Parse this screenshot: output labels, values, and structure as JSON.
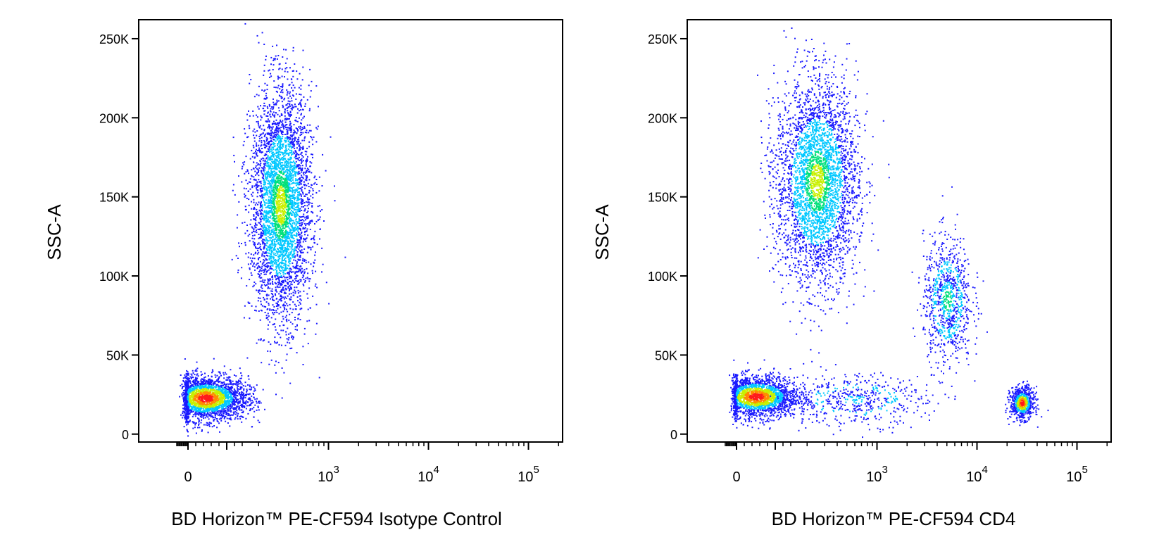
{
  "chart_data": [
    {
      "type": "scatter",
      "subtype": "flow-cytometry-density-dot-plot",
      "xlabel": "BD Horizon™ PE-CF594 Isotype Control",
      "ylabel": "SSC-A",
      "x_scale": "biexponential",
      "y_scale": "linear",
      "x_ticks": [
        {
          "value": 0,
          "base": "0",
          "exp": ""
        },
        {
          "value": 1000,
          "base": "10",
          "exp": "3"
        },
        {
          "value": 10000,
          "base": "10",
          "exp": "4"
        },
        {
          "value": 100000,
          "base": "10",
          "exp": "5"
        }
      ],
      "y_ticks": [
        {
          "value": 0,
          "label": "0"
        },
        {
          "value": 50000,
          "label": "50K"
        },
        {
          "value": 100000,
          "label": "100K"
        },
        {
          "value": 150000,
          "label": "150K"
        },
        {
          "value": 200000,
          "label": "200K"
        },
        {
          "value": 250000,
          "label": "250K"
        }
      ],
      "ylim": [
        -5000,
        262000
      ],
      "density_colors": [
        "#1a1aff",
        "#00c8ff",
        "#00e07a",
        "#c8f000",
        "#ff8c00",
        "#ff1a1a"
      ],
      "populations": [
        {
          "x_center": 45,
          "x_spread_decades": 0.22,
          "y_center": 23000,
          "y_spread": 7000,
          "count": 2600,
          "peak": "red"
        },
        {
          "x_center": 330,
          "x_spread_decades": 0.15,
          "y_center": 145000,
          "y_spread": 36000,
          "count": 4200,
          "peak": "green"
        }
      ]
    },
    {
      "type": "scatter",
      "subtype": "flow-cytometry-density-dot-plot",
      "xlabel": "BD Horizon™ PE-CF594 CD4",
      "ylabel": "SSC-A",
      "x_scale": "biexponential",
      "y_scale": "linear",
      "x_ticks": [
        {
          "value": 0,
          "base": "0",
          "exp": ""
        },
        {
          "value": 1000,
          "base": "10",
          "exp": "3"
        },
        {
          "value": 10000,
          "base": "10",
          "exp": "4"
        },
        {
          "value": 100000,
          "base": "10",
          "exp": "5"
        }
      ],
      "y_ticks": [
        {
          "value": 0,
          "label": "0"
        },
        {
          "value": 50000,
          "label": "50K"
        },
        {
          "value": 100000,
          "label": "100K"
        },
        {
          "value": 150000,
          "label": "150K"
        },
        {
          "value": 200000,
          "label": "200K"
        },
        {
          "value": 250000,
          "label": "250K"
        }
      ],
      "ylim": [
        -5000,
        262000
      ],
      "density_colors": [
        "#1a1aff",
        "#00c8ff",
        "#00e07a",
        "#c8f000",
        "#ff8c00",
        "#ff1a1a"
      ],
      "populations": [
        {
          "x_center": 50,
          "x_spread_decades": 0.22,
          "y_center": 24000,
          "y_spread": 6500,
          "count": 2200,
          "peak": "red"
        },
        {
          "x_center": 250,
          "x_spread_decades": 0.2,
          "y_center": 160000,
          "y_spread": 32000,
          "count": 3600,
          "peak": "green"
        },
        {
          "x_center": 5000,
          "x_spread_decades": 0.12,
          "y_center": 85000,
          "y_spread": 20000,
          "count": 900,
          "peak": "cyan"
        },
        {
          "x_center": 28000,
          "x_spread_decades": 0.06,
          "y_center": 20000,
          "y_spread": 5000,
          "count": 700,
          "peak": "red"
        },
        {
          "x_center": 600,
          "x_spread_decades": 0.35,
          "y_center": 22000,
          "y_spread": 8000,
          "count": 500,
          "peak": "blue"
        }
      ]
    }
  ]
}
